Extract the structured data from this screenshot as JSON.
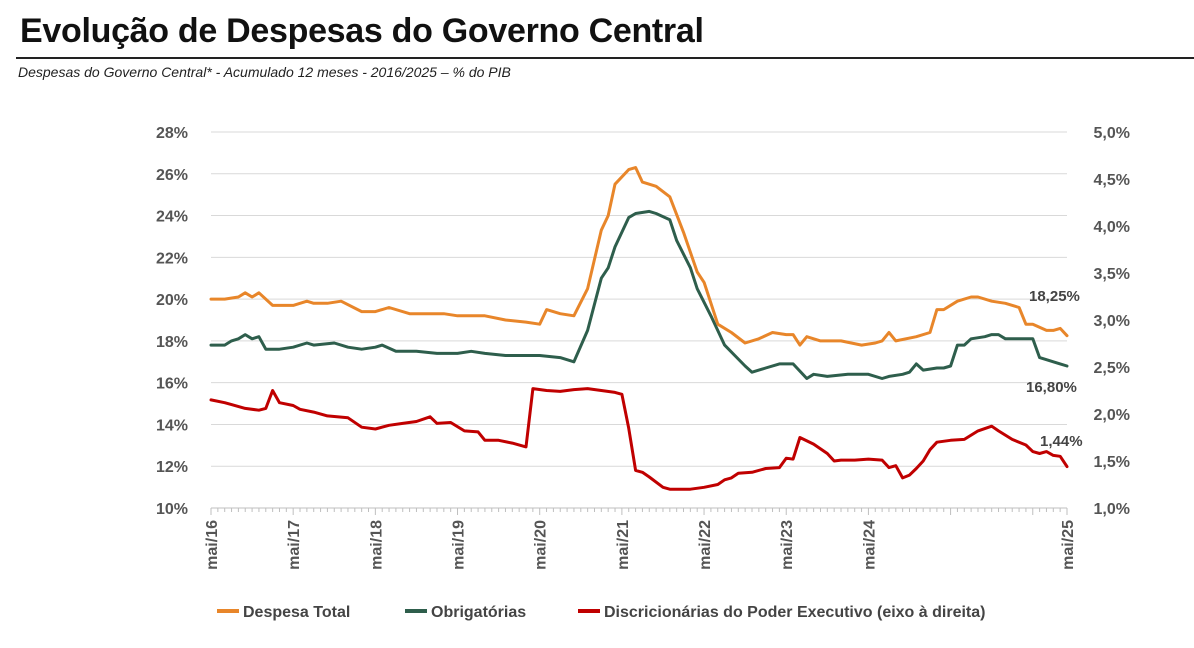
{
  "header": {
    "title": "Evolução de Despesas do Governo Central",
    "subtitle": "Despesas do Governo Central* - Acumulado 12 meses - 2016/2025 – % do PIB"
  },
  "chart_data": {
    "type": "line",
    "title": "Evolução de Despesas do Governo Central",
    "subtitle": "Despesas do Governo Central* - Acumulado 12 meses - 2016/2025 – % do PIB",
    "x_range": [
      "mai/16",
      "mai/25"
    ],
    "x_ticks": [
      "mai/16",
      "mai/17",
      "mai/18",
      "mai/19",
      "mai/20",
      "mai/21",
      "mai/22",
      "mai/23",
      "mai/24",
      "mai/25"
    ],
    "y_left": {
      "min": 10,
      "max": 28,
      "ticks": [
        "10%",
        "12%",
        "14%",
        "16%",
        "18%",
        "20%",
        "22%",
        "24%",
        "26%",
        "28%"
      ]
    },
    "y_right": {
      "min": 1.0,
      "max": 5.0,
      "ticks": [
        "1,0%",
        "1,5%",
        "2,0%",
        "2,5%",
        "3,0%",
        "3,5%",
        "4,0%",
        "4,5%",
        "5,0%"
      ]
    },
    "series": [
      {
        "name": "Despesa Total",
        "axis": "left",
        "color": "#E8862A",
        "end_label": "18,25%",
        "points": [
          [
            0,
            20.0
          ],
          [
            2,
            20.0
          ],
          [
            4,
            20.1
          ],
          [
            5,
            20.3
          ],
          [
            6,
            20.1
          ],
          [
            7,
            20.3
          ],
          [
            9,
            19.7
          ],
          [
            12,
            19.7
          ],
          [
            14,
            19.9
          ],
          [
            15,
            19.8
          ],
          [
            17,
            19.8
          ],
          [
            19,
            19.9
          ],
          [
            22,
            19.4
          ],
          [
            24,
            19.4
          ],
          [
            26,
            19.6
          ],
          [
            29,
            19.3
          ],
          [
            32,
            19.3
          ],
          [
            34,
            19.3
          ],
          [
            36,
            19.2
          ],
          [
            40,
            19.2
          ],
          [
            43,
            19.0
          ],
          [
            46,
            18.9
          ],
          [
            48,
            18.8
          ],
          [
            49,
            19.5
          ],
          [
            51,
            19.3
          ],
          [
            53,
            19.2
          ],
          [
            55,
            20.5
          ],
          [
            57,
            23.3
          ],
          [
            58,
            24.0
          ],
          [
            59,
            25.5
          ],
          [
            61,
            26.2
          ],
          [
            62,
            26.3
          ],
          [
            63,
            25.6
          ],
          [
            65,
            25.4
          ],
          [
            67,
            24.9
          ],
          [
            69,
            23.2
          ],
          [
            71,
            21.3
          ],
          [
            72,
            20.8
          ],
          [
            74,
            18.8
          ],
          [
            76,
            18.4
          ],
          [
            78,
            17.9
          ],
          [
            80,
            18.1
          ],
          [
            82,
            18.4
          ],
          [
            84,
            18.3
          ],
          [
            85,
            18.3
          ],
          [
            86,
            17.8
          ],
          [
            87,
            18.2
          ],
          [
            89,
            18.0
          ],
          [
            92,
            18.0
          ],
          [
            95,
            17.8
          ],
          [
            97,
            17.9
          ],
          [
            98,
            18.0
          ],
          [
            99,
            18.4
          ],
          [
            100,
            18.0
          ],
          [
            103,
            18.2
          ],
          [
            105,
            18.4
          ],
          [
            106,
            19.5
          ],
          [
            107,
            19.5
          ],
          [
            109,
            19.9
          ],
          [
            111,
            20.1
          ],
          [
            112,
            20.1
          ],
          [
            114,
            19.9
          ],
          [
            116,
            19.8
          ],
          [
            118,
            19.6
          ],
          [
            119,
            18.8
          ],
          [
            120,
            18.8
          ],
          [
            122,
            18.5
          ],
          [
            123,
            18.5
          ],
          [
            124,
            18.6
          ],
          [
            125,
            18.25
          ]
        ]
      },
      {
        "name": "Obrigatórias",
        "axis": "left",
        "color": "#2E5E4C",
        "end_label": "16,80%",
        "points": [
          [
            0,
            17.8
          ],
          [
            2,
            17.8
          ],
          [
            3,
            18.0
          ],
          [
            4,
            18.1
          ],
          [
            5,
            18.3
          ],
          [
            6,
            18.1
          ],
          [
            7,
            18.2
          ],
          [
            8,
            17.6
          ],
          [
            10,
            17.6
          ],
          [
            12,
            17.7
          ],
          [
            14,
            17.9
          ],
          [
            15,
            17.8
          ],
          [
            18,
            17.9
          ],
          [
            20,
            17.7
          ],
          [
            22,
            17.6
          ],
          [
            24,
            17.7
          ],
          [
            25,
            17.8
          ],
          [
            27,
            17.5
          ],
          [
            30,
            17.5
          ],
          [
            33,
            17.4
          ],
          [
            36,
            17.4
          ],
          [
            38,
            17.5
          ],
          [
            40,
            17.4
          ],
          [
            43,
            17.3
          ],
          [
            46,
            17.3
          ],
          [
            48,
            17.3
          ],
          [
            51,
            17.2
          ],
          [
            53,
            17.0
          ],
          [
            55,
            18.5
          ],
          [
            57,
            21.0
          ],
          [
            58,
            21.5
          ],
          [
            59,
            22.5
          ],
          [
            61,
            23.9
          ],
          [
            62,
            24.1
          ],
          [
            64,
            24.2
          ],
          [
            65,
            24.1
          ],
          [
            67,
            23.8
          ],
          [
            68,
            22.8
          ],
          [
            70,
            21.5
          ],
          [
            71,
            20.5
          ],
          [
            73,
            19.2
          ],
          [
            75,
            17.8
          ],
          [
            78,
            16.8
          ],
          [
            79,
            16.5
          ],
          [
            81,
            16.7
          ],
          [
            83,
            16.9
          ],
          [
            85,
            16.9
          ],
          [
            87,
            16.2
          ],
          [
            88,
            16.4
          ],
          [
            90,
            16.3
          ],
          [
            93,
            16.4
          ],
          [
            96,
            16.4
          ],
          [
            98,
            16.2
          ],
          [
            99,
            16.3
          ],
          [
            101,
            16.4
          ],
          [
            102,
            16.5
          ],
          [
            103,
            16.9
          ],
          [
            104,
            16.6
          ],
          [
            106,
            16.7
          ],
          [
            107,
            16.7
          ],
          [
            108,
            16.8
          ],
          [
            109,
            17.8
          ],
          [
            110,
            17.8
          ],
          [
            111,
            18.1
          ],
          [
            113,
            18.2
          ],
          [
            114,
            18.3
          ],
          [
            115,
            18.3
          ],
          [
            116,
            18.1
          ],
          [
            118,
            18.1
          ],
          [
            120,
            18.1
          ],
          [
            121,
            17.2
          ],
          [
            122,
            17.1
          ],
          [
            123,
            17.0
          ],
          [
            124,
            16.9
          ],
          [
            125,
            16.8
          ]
        ]
      },
      {
        "name": "Discricionárias do Poder Executivo (eixo à direita)",
        "axis": "right",
        "color": "#C00000",
        "end_label": "1,44%",
        "points": [
          [
            0,
            2.15
          ],
          [
            2,
            2.12
          ],
          [
            3,
            2.1
          ],
          [
            5,
            2.06
          ],
          [
            7,
            2.04
          ],
          [
            8,
            2.06
          ],
          [
            9,
            2.25
          ],
          [
            10,
            2.12
          ],
          [
            12,
            2.09
          ],
          [
            13,
            2.05
          ],
          [
            15,
            2.02
          ],
          [
            17,
            1.98
          ],
          [
            20,
            1.96
          ],
          [
            22,
            1.86
          ],
          [
            24,
            1.84
          ],
          [
            26,
            1.88
          ],
          [
            28,
            1.9
          ],
          [
            30,
            1.92
          ],
          [
            32,
            1.97
          ],
          [
            33,
            1.9
          ],
          [
            35,
            1.91
          ],
          [
            37,
            1.82
          ],
          [
            39,
            1.81
          ],
          [
            40,
            1.72
          ],
          [
            42,
            1.72
          ],
          [
            44,
            1.69
          ],
          [
            46,
            1.65
          ],
          [
            47,
            2.27
          ],
          [
            49,
            2.25
          ],
          [
            51,
            2.24
          ],
          [
            53,
            2.26
          ],
          [
            55,
            2.27
          ],
          [
            57,
            2.25
          ],
          [
            59,
            2.23
          ],
          [
            60,
            2.21
          ],
          [
            61,
            1.85
          ],
          [
            62,
            1.4
          ],
          [
            63,
            1.38
          ],
          [
            64,
            1.33
          ],
          [
            66,
            1.22
          ],
          [
            67,
            1.2
          ],
          [
            70,
            1.2
          ],
          [
            72,
            1.22
          ],
          [
            74,
            1.25
          ],
          [
            75,
            1.3
          ],
          [
            76,
            1.32
          ],
          [
            77,
            1.37
          ],
          [
            79,
            1.38
          ],
          [
            81,
            1.42
          ],
          [
            83,
            1.43
          ],
          [
            84,
            1.53
          ],
          [
            85,
            1.52
          ],
          [
            86,
            1.75
          ],
          [
            88,
            1.68
          ],
          [
            90,
            1.58
          ],
          [
            91,
            1.5
          ],
          [
            92,
            1.51
          ],
          [
            94,
            1.51
          ],
          [
            96,
            1.52
          ],
          [
            98,
            1.51
          ],
          [
            99,
            1.43
          ],
          [
            100,
            1.45
          ],
          [
            101,
            1.32
          ],
          [
            102,
            1.35
          ],
          [
            103,
            1.42
          ],
          [
            104,
            1.5
          ],
          [
            105,
            1.62
          ],
          [
            106,
            1.7
          ],
          [
            108,
            1.72
          ],
          [
            110,
            1.73
          ],
          [
            112,
            1.82
          ],
          [
            114,
            1.87
          ],
          [
            115,
            1.82
          ],
          [
            117,
            1.73
          ],
          [
            119,
            1.67
          ],
          [
            120,
            1.6
          ],
          [
            121,
            1.58
          ],
          [
            122,
            1.6
          ],
          [
            123,
            1.56
          ],
          [
            124,
            1.55
          ],
          [
            125,
            1.44
          ]
        ]
      }
    ],
    "legend": {
      "position": "bottom",
      "entries": [
        "Despesa Total",
        "Obrigatórias",
        "Discricionárias do Poder Executivo (eixo à direita)"
      ]
    },
    "grid": "horizontal"
  }
}
